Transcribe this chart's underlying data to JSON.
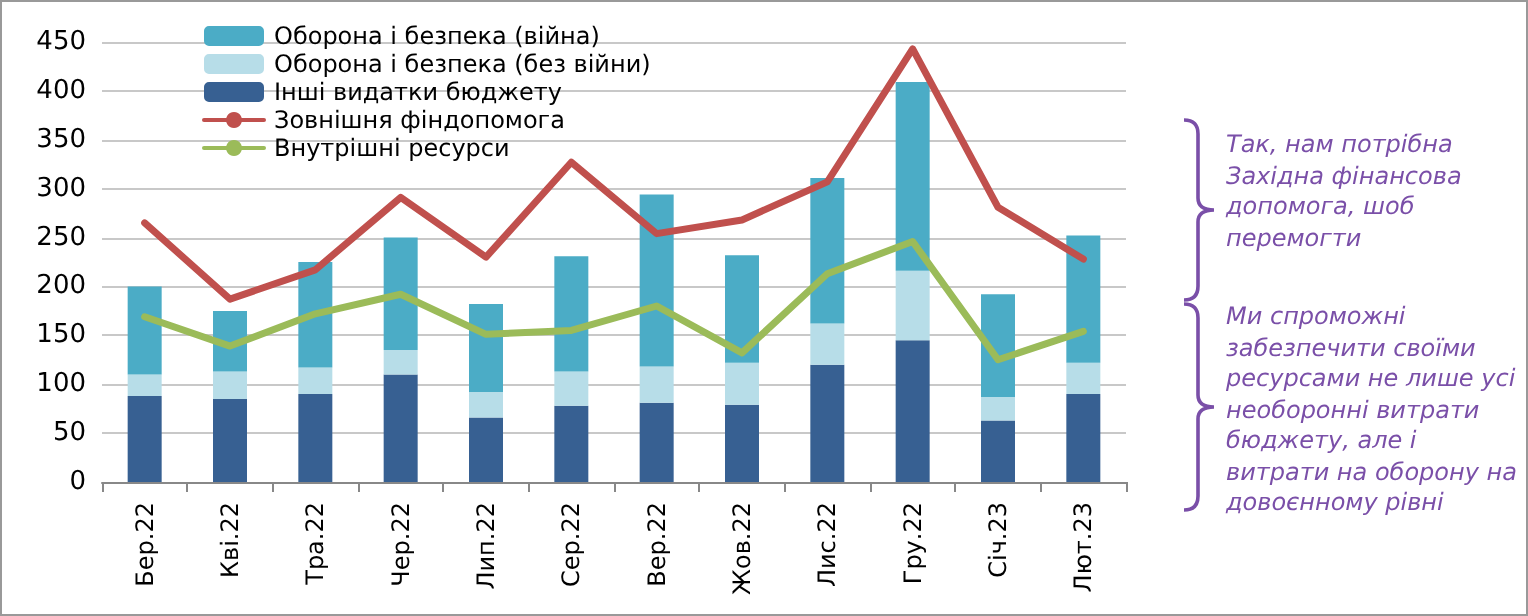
{
  "chart_data": {
    "type": "bar",
    "stacked": true,
    "categories": [
      "Бер.22",
      "Кві.22",
      "Тра.22",
      "Чер.22",
      "Лип.22",
      "Сер.22",
      "Вер.22",
      "Жов.22",
      "Лис.22",
      "Гру.22",
      "Січ.23",
      "Лют.23"
    ],
    "series": [
      {
        "name": "Інші видатки бюджету",
        "color": "#376092",
        "values": [
          88,
          85,
          90,
          110,
          66,
          78,
          81,
          79,
          120,
          145,
          63,
          90
        ]
      },
      {
        "name": "Оборона і безпека (без війни)",
        "color": "#b7dde8",
        "values": [
          22,
          28,
          27,
          25,
          26,
          35,
          37,
          43,
          42,
          71,
          24,
          32
        ]
      },
      {
        "name": "Оборона і безпека (війна)",
        "color": "#4bacc6",
        "values": [
          90,
          62,
          108,
          115,
          90,
          118,
          176,
          110,
          149,
          193,
          105,
          130
        ]
      },
      {
        "name": "Зовнішня фіндопомога",
        "type": "line",
        "color": "#c0504d",
        "values": [
          265,
          187,
          217,
          291,
          230,
          327,
          254,
          268,
          307,
          443,
          281,
          228
        ]
      },
      {
        "name": "Внутрішні ресурси",
        "type": "line",
        "color": "#9bbb59",
        "values": [
          169,
          139,
          172,
          192,
          151,
          155,
          180,
          132,
          213,
          246,
          125,
          154
        ]
      }
    ],
    "ylim": [
      0,
      450
    ],
    "yticks": [
      0,
      50,
      100,
      150,
      200,
      250,
      300,
      350,
      400,
      450
    ],
    "grid": "y",
    "legend": "top left",
    "marker": "none",
    "annotations": [
      "Так, нам потрібна Західна фінансова допомога, шоб перемогти",
      "Ми спроможні забезпечити своїми ресурсами не лише усі необоронні витрати бюджету, але і витрати на оборону на довоєнному рівні"
    ]
  }
}
